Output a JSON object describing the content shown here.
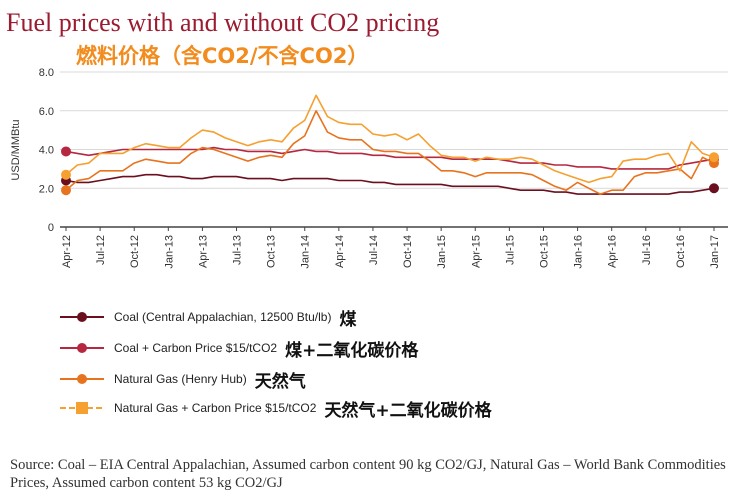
{
  "title": "Fuel prices with and without CO2 pricing",
  "subtitle": "燃料价格（含CO2/不含CO2）",
  "source": "Source: Coal – EIA Central Appalachian, Assumed carbon content 90 kg CO2/GJ, Natural Gas – World Bank Commodities Prices, Assumed carbon content 53 kg CO2/GJ",
  "legend": [
    {
      "label": "Coal (Central Appalachian, 12500 Btu/lb)",
      "cn": "煤",
      "color": "#6b0f1f"
    },
    {
      "label": "Coal + Carbon Price $15/tCO2",
      "cn": "煤+二氧化碳价格",
      "color": "#b5283f"
    },
    {
      "label": "Natural Gas (Henry Hub)",
      "cn": "天然气",
      "color": "#e8731e"
    },
    {
      "label": "Natural Gas + Carbon Price $15/tCO2",
      "cn": "天然气+二氧化碳价格",
      "color": "#f5a030"
    }
  ],
  "chart_data": {
    "type": "line",
    "ylabel": "USD/MMBtu",
    "ylim": [
      0,
      8
    ],
    "yticks": [
      "0",
      "2.0",
      "4.0",
      "6.0",
      "8.0"
    ],
    "xticks": [
      "Apr-12",
      "Jul-12",
      "Oct-12",
      "Jan-13",
      "Apr-13",
      "Jul-13",
      "Oct-13",
      "Jan-14",
      "Apr-14",
      "Jul-14",
      "Oct-14",
      "Jan-15",
      "Apr-15",
      "Jul-15",
      "Oct-15",
      "Jan-16",
      "Apr-16",
      "Jul-16",
      "Oct-16",
      "Jan-17"
    ],
    "x": [
      "Apr-12",
      "May-12",
      "Jun-12",
      "Jul-12",
      "Aug-12",
      "Sep-12",
      "Oct-12",
      "Nov-12",
      "Dec-12",
      "Jan-13",
      "Feb-13",
      "Mar-13",
      "Apr-13",
      "May-13",
      "Jun-13",
      "Jul-13",
      "Aug-13",
      "Sep-13",
      "Oct-13",
      "Nov-13",
      "Dec-13",
      "Jan-14",
      "Feb-14",
      "Mar-14",
      "Apr-14",
      "May-14",
      "Jun-14",
      "Jul-14",
      "Aug-14",
      "Sep-14",
      "Oct-14",
      "Nov-14",
      "Dec-14",
      "Jan-15",
      "Feb-15",
      "Mar-15",
      "Apr-15",
      "May-15",
      "Jun-15",
      "Jul-15",
      "Aug-15",
      "Sep-15",
      "Oct-15",
      "Nov-15",
      "Dec-15",
      "Jan-16",
      "Feb-16",
      "Mar-16",
      "Apr-16",
      "May-16",
      "Jun-16",
      "Jul-16",
      "Aug-16",
      "Sep-16",
      "Oct-16",
      "Nov-16",
      "Dec-16",
      "Jan-17"
    ],
    "series": [
      {
        "name": "Coal (Central Appalachian, 12500 Btu/lb)",
        "color": "#6b0f1f",
        "values": [
          2.4,
          2.3,
          2.3,
          2.4,
          2.5,
          2.6,
          2.6,
          2.7,
          2.7,
          2.6,
          2.6,
          2.5,
          2.5,
          2.6,
          2.6,
          2.6,
          2.5,
          2.5,
          2.5,
          2.4,
          2.5,
          2.5,
          2.5,
          2.5,
          2.4,
          2.4,
          2.4,
          2.3,
          2.3,
          2.2,
          2.2,
          2.2,
          2.2,
          2.2,
          2.1,
          2.1,
          2.1,
          2.1,
          2.1,
          2.0,
          1.9,
          1.9,
          1.9,
          1.8,
          1.8,
          1.7,
          1.7,
          1.7,
          1.7,
          1.7,
          1.7,
          1.7,
          1.7,
          1.7,
          1.8,
          1.8,
          1.9,
          2.0
        ]
      },
      {
        "name": "Coal + Carbon Price $15/tCO2",
        "color": "#b5283f",
        "values": [
          3.9,
          3.8,
          3.7,
          3.8,
          3.9,
          4.0,
          4.0,
          4.0,
          4.0,
          4.0,
          4.0,
          4.0,
          4.0,
          4.1,
          4.0,
          4.0,
          3.9,
          3.9,
          3.9,
          3.8,
          3.9,
          4.0,
          3.9,
          3.9,
          3.8,
          3.8,
          3.8,
          3.7,
          3.7,
          3.6,
          3.6,
          3.6,
          3.6,
          3.6,
          3.5,
          3.5,
          3.5,
          3.5,
          3.5,
          3.4,
          3.3,
          3.3,
          3.3,
          3.2,
          3.2,
          3.1,
          3.1,
          3.1,
          3.0,
          3.0,
          3.0,
          3.0,
          3.0,
          3.0,
          3.2,
          3.3,
          3.4,
          3.5
        ]
      },
      {
        "name": "Natural Gas (Henry Hub)",
        "color": "#e8731e",
        "values": [
          1.9,
          2.4,
          2.5,
          2.9,
          2.9,
          2.9,
          3.3,
          3.5,
          3.4,
          3.3,
          3.3,
          3.8,
          4.1,
          4.0,
          3.8,
          3.6,
          3.4,
          3.6,
          3.7,
          3.6,
          4.3,
          4.7,
          6.0,
          4.9,
          4.6,
          4.5,
          4.5,
          4.0,
          3.9,
          3.9,
          3.8,
          3.8,
          3.4,
          2.9,
          2.9,
          2.8,
          2.6,
          2.8,
          2.8,
          2.8,
          2.8,
          2.7,
          2.4,
          2.1,
          1.9,
          2.3,
          2.0,
          1.7,
          1.9,
          1.9,
          2.6,
          2.8,
          2.8,
          2.9,
          3.0,
          2.5,
          3.6,
          3.3
        ]
      },
      {
        "name": "Natural Gas + Carbon Price $15/tCO2",
        "color": "#f5a030",
        "values": [
          2.7,
          3.2,
          3.3,
          3.8,
          3.8,
          3.8,
          4.1,
          4.3,
          4.2,
          4.1,
          4.1,
          4.6,
          5.0,
          4.9,
          4.6,
          4.4,
          4.2,
          4.4,
          4.5,
          4.4,
          5.1,
          5.5,
          6.8,
          5.7,
          5.4,
          5.3,
          5.3,
          4.8,
          4.7,
          4.8,
          4.5,
          4.8,
          4.2,
          3.7,
          3.6,
          3.6,
          3.4,
          3.6,
          3.5,
          3.5,
          3.6,
          3.5,
          3.2,
          2.9,
          2.7,
          2.5,
          2.3,
          2.5,
          2.6,
          3.4,
          3.5,
          3.5,
          3.7,
          3.8,
          2.9,
          4.4,
          3.8,
          3.6
        ]
      }
    ],
    "grid": true
  }
}
